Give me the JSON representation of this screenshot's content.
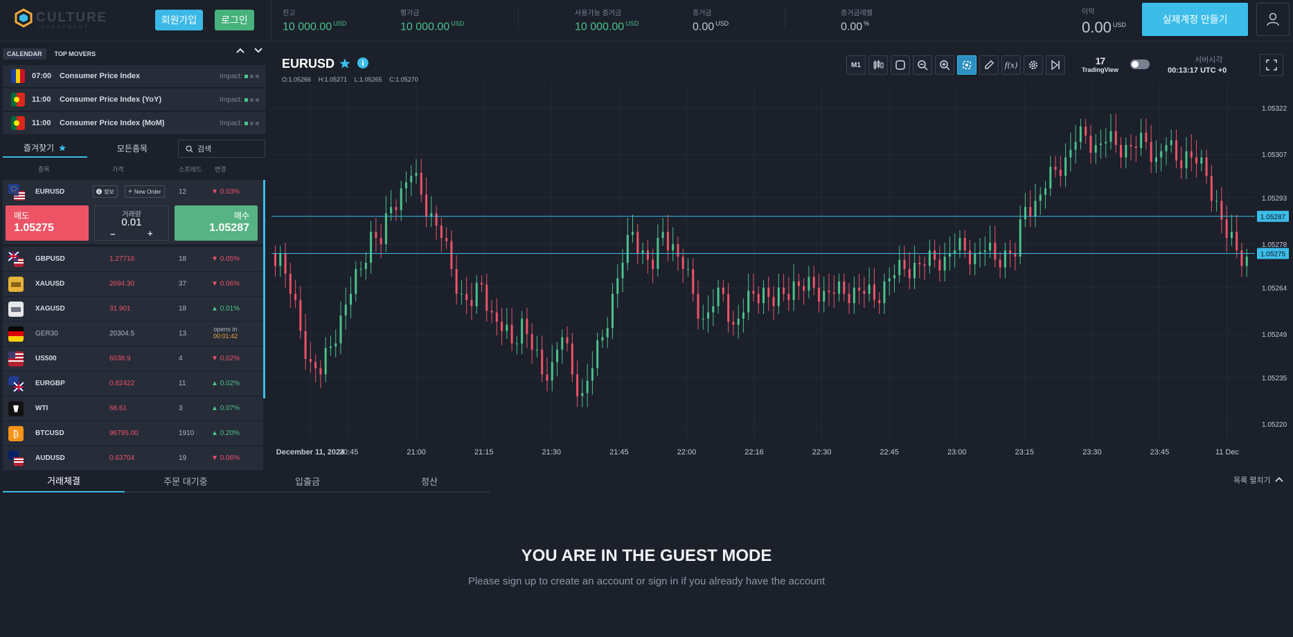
{
  "header": {
    "logo_text": "CULTURE",
    "logo_sub": "INVESTMENT",
    "signup_label": "회원가입",
    "login_label": "로그인",
    "stats": [
      {
        "label": "잔고",
        "value": "10 000.00",
        "unit": "USD"
      },
      {
        "label": "평가금",
        "value": "10 000.00",
        "unit": "USD"
      },
      {
        "label": "사용가능 증거금",
        "value": "10 000.00",
        "unit": "USD"
      },
      {
        "label": "증거금",
        "value": "0.00",
        "unit": "USD"
      },
      {
        "label": "증거금레벨",
        "value": "0.00",
        "unit": "%"
      },
      {
        "label": "이익",
        "value": "0.00",
        "unit": "USD"
      }
    ],
    "real_account_label": "실제계정 만들기"
  },
  "calendar": {
    "tabs": [
      "CALENDAR",
      "TOP MOVERS"
    ],
    "events": [
      {
        "time": "07:00",
        "name": "Consumer Price Index",
        "impact_label": "Impact:",
        "impact": 1,
        "flag": "ro"
      },
      {
        "time": "11:00",
        "name": "Consumer Price Index (YoY)",
        "impact_label": "Impact:",
        "impact": 1,
        "flag": "pt"
      },
      {
        "time": "11:00",
        "name": "Consumer Price Index (MoM)",
        "impact_label": "Impact:",
        "impact": 1,
        "flag": "pt"
      }
    ]
  },
  "watchlist": {
    "tab_favorites": "즐겨찾기",
    "tab_all": "모든종목",
    "search_placeholder": "검색",
    "columns": [
      "종목",
      "가격",
      "스프레드",
      "변경"
    ],
    "selected": {
      "symbol": "EURUSD",
      "info_label": "정보",
      "new_order_label": "New Order",
      "spread": "12",
      "change": "0.03%",
      "sell_label": "매도",
      "sell_price": "1.05275",
      "qty_label": "거래량",
      "qty_value": "0.01",
      "qty_minus": "−",
      "qty_plus": "+",
      "buy_label": "매수",
      "buy_price": "1.05287"
    },
    "rows": [
      {
        "symbol": "GBPUSD",
        "price": "1.27716",
        "spread": "18",
        "change": "0.05%",
        "dir": "down",
        "icon": "gb-us"
      },
      {
        "symbol": "XAUUSD",
        "price": "2694.30",
        "spread": "37",
        "change": "0.06%",
        "dir": "down",
        "icon": "gold"
      },
      {
        "symbol": "XAGUSD",
        "price": "31.901",
        "spread": "18",
        "change": "0.01%",
        "dir": "up",
        "icon": "silver"
      },
      {
        "symbol": "GER30",
        "price": "20304.5",
        "spread": "13",
        "change": "",
        "opens_label": "opens in",
        "opens_time": "00:01:42",
        "dir": "closed",
        "icon": "de"
      },
      {
        "symbol": "US500",
        "price": "6038.9",
        "spread": "4",
        "change": "0.02%",
        "dir": "down",
        "icon": "us"
      },
      {
        "symbol": "EURGBP",
        "price": "0.82422",
        "spread": "11",
        "change": "0.02%",
        "dir": "up",
        "icon": "eu-gb"
      },
      {
        "symbol": "WTI",
        "price": "68.61",
        "spread": "3",
        "change": "0.07%",
        "dir": "up",
        "icon": "oil"
      },
      {
        "symbol": "BTCUSD",
        "price": "96795.00",
        "spread": "1910",
        "change": "0.20%",
        "dir": "up",
        "icon": "btc"
      },
      {
        "symbol": "AUDUSD",
        "price": "0.63704",
        "spread": "19",
        "change": "0.06%",
        "dir": "down",
        "icon": "au-us"
      }
    ]
  },
  "chart_header": {
    "symbol": "EURUSD",
    "ohlc": {
      "o": "O:1.05266",
      "h": "H:1.05271",
      "l": "L:1.05265",
      "c": "C:1.05270"
    },
    "tools": [
      "M1",
      "candles-icon",
      "square-icon",
      "zoom-out-icon",
      "zoom-in-icon",
      "crosshair-icon",
      "pencil-icon",
      "fx-icon",
      "settings-icon",
      "skip-forward-icon"
    ],
    "tradingview_label": "TradingView",
    "server_time_label": "서버시각",
    "server_time": "00:13:17 UTC +0"
  },
  "chart_data": {
    "type": "candlestick",
    "title": "EURUSD",
    "x_ticks": [
      "December 11, 2024",
      "20:45",
      "21:00",
      "21:15",
      "21:30",
      "21:45",
      "22:00",
      "22:16",
      "22:30",
      "22:45",
      "23:00",
      "23:15",
      "23:30",
      "23:45",
      "11 Dec"
    ],
    "y_ticks": [
      "1.05322",
      "1.05307",
      "1.05293",
      "1.05278",
      "1.05264",
      "1.05249",
      "1.05235",
      "1.05220"
    ],
    "ylim": [
      1.05214,
      1.0533
    ],
    "ask_line": "1.05287",
    "bid_line": "1.05275",
    "closes": [
      1.05275,
      1.05262,
      1.0525,
      1.0524,
      1.05236,
      1.05245,
      1.05255,
      1.05262,
      1.0527,
      1.05282,
      1.05278,
      1.0529,
      1.05296,
      1.053,
      1.05294,
      1.05288,
      1.0528,
      1.0527,
      1.05262,
      1.05258,
      1.05265,
      1.05256,
      1.0525,
      1.05246,
      1.05254,
      1.05244,
      1.05236,
      1.0524,
      1.05248,
      1.05236,
      1.0523,
      1.05238,
      1.05248,
      1.05262,
      1.05272,
      1.05282,
      1.05276,
      1.0527,
      1.05282,
      1.05278,
      1.0527,
      1.05262,
      1.05254,
      1.05258,
      1.05262,
      1.05252,
      1.05256,
      1.05262,
      1.05264,
      1.05258,
      1.05262,
      1.05266,
      1.05263,
      1.05264,
      1.05263,
      1.05262,
      1.05262,
      1.05264,
      1.05262,
      1.0526,
      1.05266,
      1.05268,
      1.0527,
      1.05272,
      1.05271,
      1.05273,
      1.05274,
      1.05276,
      1.05276,
      1.05275,
      1.05276,
      1.05273,
      1.05276,
      1.05274,
      1.0529,
      1.05292,
      1.05296,
      1.05302,
      1.05306,
      1.05311,
      1.05313,
      1.0531,
      1.05311,
      1.0531,
      1.0531,
      1.05309,
      1.05311,
      1.05306,
      1.0531,
      1.05305,
      1.05308,
      1.05304,
      1.053,
      1.05292,
      1.0528,
      1.05276,
      1.05274
    ]
  },
  "bottom": {
    "tabs": [
      "거래체결",
      "주문 대기중",
      "입출금",
      "정산"
    ],
    "expand_label": "목록 펼치기",
    "guest_title": "YOU ARE IN THE GUEST MODE",
    "guest_sub": "Please sign up to create an account or sign in if you already have the account"
  },
  "colors": {
    "accent": "#3cbde9",
    "up": "#4cc38a",
    "down": "#ef5366",
    "bg": "#1b202b"
  }
}
